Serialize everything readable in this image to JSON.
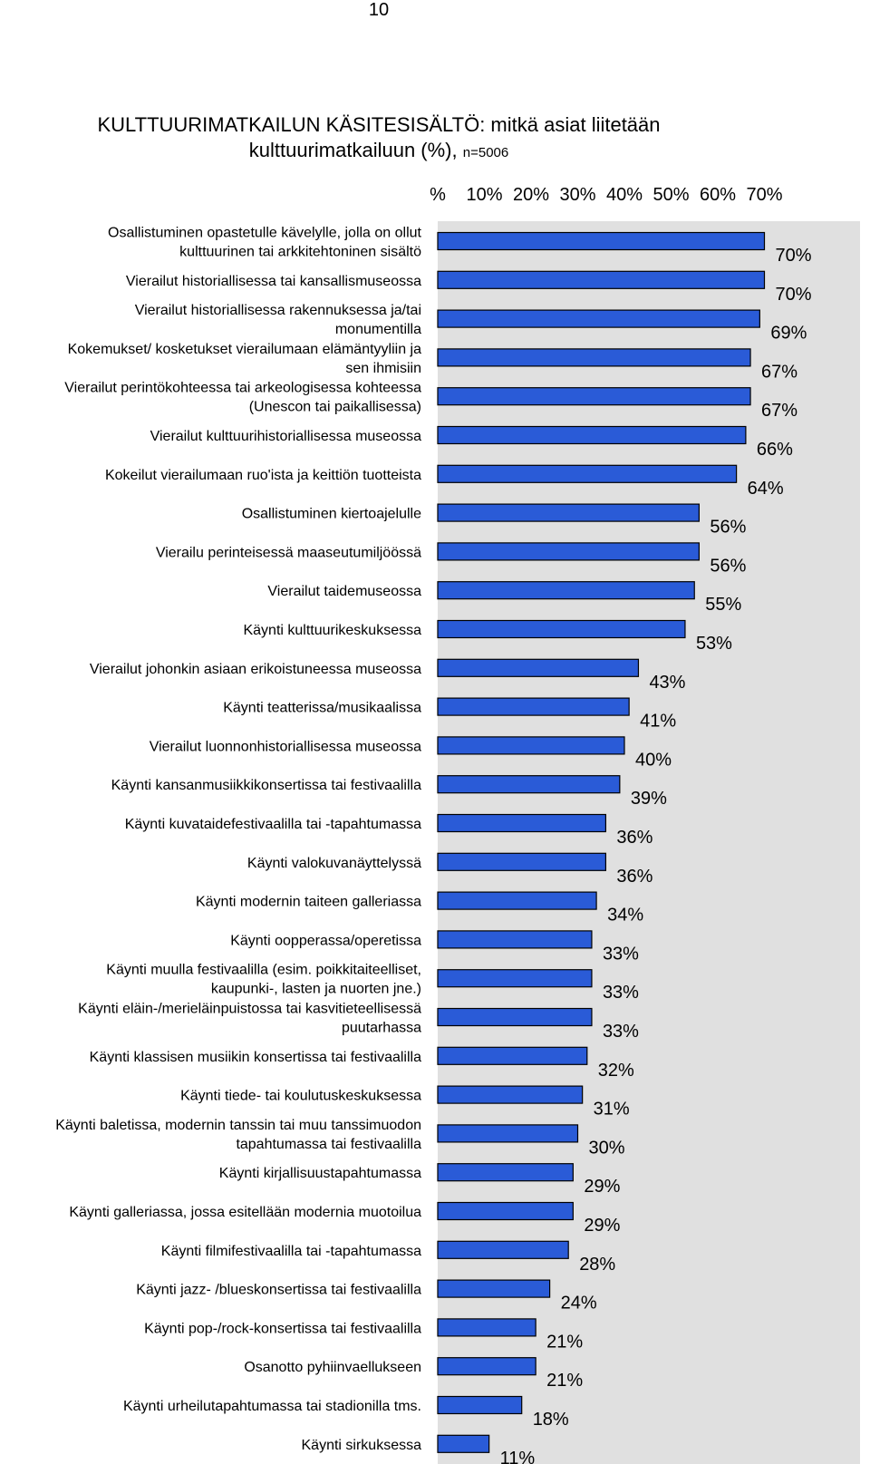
{
  "page_number": "10",
  "chart_data": {
    "type": "bar",
    "orientation": "horizontal",
    "title_line1": "KULTTUURIMATKAILUN KÄSITESISÄLTÖ: mitkä asiat liitetään",
    "title_line2": "kulttuurimatkailuun (%),",
    "sample_size": "n=5006",
    "x_ticks": [
      "%",
      "10%",
      "20%",
      "30%",
      "40%",
      "50%",
      "60%",
      "70%"
    ],
    "xlim": [
      0,
      70
    ],
    "plot_background": "#e0e0e0",
    "bar_color": "#2a5bd7",
    "bar_outline": "#000000",
    "categories": [
      [
        "Osallistuminen opastetulle kävelylle, jolla on ollut",
        "kulttuurinen tai arkkitehtoninen sisältö"
      ],
      [
        "Vierailut historiallisessa tai kansallismuseossa"
      ],
      [
        "Vierailut historiallisessa rakennuksessa ja/tai",
        "monumentilla"
      ],
      [
        "Kokemukset/ kosketukset vierailumaan elämäntyyliin ja",
        "sen ihmisiin"
      ],
      [
        "Vierailut perintökohteessa tai arkeologisessa kohteessa",
        "(Unescon tai paikallisessa)"
      ],
      [
        "Vierailut kulttuurihistoriallisessa museossa"
      ],
      [
        "Kokeilut vierailumaan ruo'ista ja keittiön tuotteista"
      ],
      [
        "Osallistuminen kiertoajelulle"
      ],
      [
        "Vierailu perinteisessä maaseutumiljöössä"
      ],
      [
        "Vierailut taidemuseossa"
      ],
      [
        "Käynti kulttuurikeskuksessa"
      ],
      [
        "Vierailut johonkin asiaan erikoistuneessa museossa"
      ],
      [
        "Käynti teatterissa/musikaalissa"
      ],
      [
        "Vierailut luonnonhistoriallisessa museossa"
      ],
      [
        "Käynti kansanmusiikkikonsertissa tai festivaalilla"
      ],
      [
        "Käynti kuvataidefestivaalilla tai -tapahtumassa"
      ],
      [
        "Käynti valokuvanäyttelyssä"
      ],
      [
        "Käynti modernin taiteen galleriassa"
      ],
      [
        "Käynti oopperassa/operetissa"
      ],
      [
        "Käynti muulla festivaalilla (esim. poikkitaiteelliset,",
        "kaupunki-, lasten ja nuorten jne.)"
      ],
      [
        "Käynti eläin-/merieläinpuistossa tai kasvitieteellisessä",
        "puutarhassa"
      ],
      [
        "Käynti klassisen musiikin konsertissa tai festivaalilla"
      ],
      [
        "Käynti tiede- tai koulutuskeskuksessa"
      ],
      [
        "Käynti baletissa, modernin tanssin tai muu tanssimuodon",
        "tapahtumassa tai festivaalilla"
      ],
      [
        "Käynti kirjallisuustapahtumassa"
      ],
      [
        "Käynti galleriassa, jossa esitellään modernia muotoilua"
      ],
      [
        "Käynti filmifestivaalilla tai -tapahtumassa"
      ],
      [
        "Käynti jazz- /blueskonsertissa tai festivaalilla"
      ],
      [
        "Käynti pop-/rock-konsertissa tai festivaalilla"
      ],
      [
        "Osanotto pyhiinvaellukseen"
      ],
      [
        "Käynti urheilutapahtumassa tai stadionilla tms."
      ],
      [
        "Käynti sirkuksessa"
      ]
    ],
    "values": [
      70,
      70,
      69,
      67,
      67,
      66,
      64,
      56,
      56,
      55,
      53,
      43,
      41,
      40,
      39,
      36,
      36,
      34,
      33,
      33,
      33,
      32,
      31,
      30,
      29,
      29,
      28,
      24,
      21,
      21,
      18,
      11
    ],
    "value_labels": [
      "70%",
      "70%",
      "69%",
      "67%",
      "67%",
      "66%",
      "64%",
      "56%",
      "56%",
      "55%",
      "53%",
      "43%",
      "41%",
      "40%",
      "39%",
      "36%",
      "36%",
      "34%",
      "33%",
      "33%",
      "33%",
      "32%",
      "31%",
      "30%",
      "29%",
      "29%",
      "28%",
      "24%",
      "21%",
      "21%",
      "18%",
      "11%"
    ]
  }
}
